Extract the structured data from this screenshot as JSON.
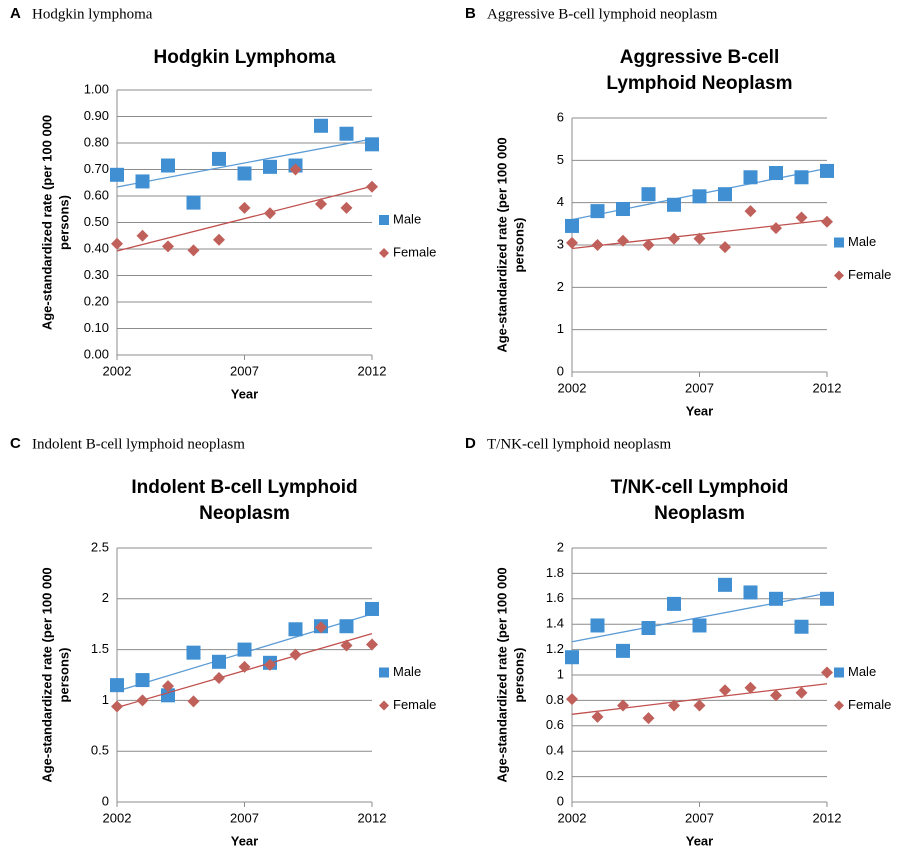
{
  "chart_data": [
    {
      "type": "scatter",
      "panel": "A",
      "caption": "Hodgkin lymphoma",
      "title": [
        "Hodgkin Lymphoma"
      ],
      "ylabel": [
        "Age-standardized rate (per 100 000",
        "persons)"
      ],
      "xlabel": "Year",
      "x": [
        2002,
        2003,
        2004,
        2005,
        2006,
        2007,
        2008,
        2009,
        2010,
        2011,
        2012
      ],
      "series": [
        {
          "name": "Male",
          "color": "#3f8fd2",
          "trend_color": "#5b9bd5",
          "marker": "square",
          "values": [
            0.68,
            0.655,
            0.715,
            0.575,
            0.74,
            0.685,
            0.71,
            0.715,
            0.865,
            0.835,
            0.795
          ]
        },
        {
          "name": "Female",
          "color": "#c0605a",
          "trend_color": "#c0504d",
          "marker": "diamond",
          "values": [
            0.42,
            0.45,
            0.41,
            0.395,
            0.435,
            0.555,
            0.535,
            0.7,
            0.57,
            0.555,
            0.635
          ]
        }
      ],
      "trendline": "linear",
      "xlim": [
        2002,
        2012
      ],
      "xticks": [
        2002,
        2007,
        2012
      ],
      "ylim": [
        0,
        1
      ],
      "yticks": [
        {
          "value": 0,
          "label": "0.00"
        },
        {
          "value": 0.1,
          "label": "0.10"
        },
        {
          "value": 0.2,
          "label": "0.20"
        },
        {
          "value": 0.3,
          "label": "0.30"
        },
        {
          "value": 0.4,
          "label": "0.40"
        },
        {
          "value": 0.5,
          "label": "0.50"
        },
        {
          "value": 0.6,
          "label": "0.60"
        },
        {
          "value": 0.7,
          "label": "0.70"
        },
        {
          "value": 0.8,
          "label": "0.80"
        },
        {
          "value": 0.9,
          "label": "0.90"
        },
        {
          "value": 1,
          "label": "1.00"
        }
      ],
      "grid": true,
      "legend": "right"
    },
    {
      "type": "scatter",
      "panel": "B",
      "caption": "Aggressive B-cell lymphoid neoplasm",
      "title": [
        "Aggressive B-cell",
        "Lymphoid Neoplasm"
      ],
      "ylabel": [
        "Age-standardized rate (per 100 000",
        "persons)"
      ],
      "xlabel": "Year",
      "x": [
        2002,
        2003,
        2004,
        2005,
        2006,
        2007,
        2008,
        2009,
        2010,
        2011,
        2012
      ],
      "series": [
        {
          "name": "Male",
          "color": "#3f8fd2",
          "trend_color": "#5b9bd5",
          "marker": "square",
          "values": [
            3.45,
            3.8,
            3.85,
            4.2,
            3.95,
            4.15,
            4.2,
            4.6,
            4.7,
            4.6,
            4.75
          ]
        },
        {
          "name": "Female",
          "color": "#c0605a",
          "trend_color": "#c0504d",
          "marker": "diamond",
          "values": [
            3.05,
            3.0,
            3.1,
            3.0,
            3.15,
            3.15,
            2.95,
            3.8,
            3.4,
            3.65,
            3.55
          ]
        }
      ],
      "trendline": "linear",
      "xlim": [
        2002,
        2012
      ],
      "xticks": [
        2002,
        2007,
        2012
      ],
      "ylim": [
        0,
        6
      ],
      "yticks": [
        0,
        1,
        2,
        3,
        4,
        5,
        6
      ],
      "grid": true,
      "legend": "right"
    },
    {
      "type": "scatter",
      "panel": "C",
      "caption": "Indolent B-cell lymphoid neoplasm",
      "title": [
        "Indolent B-cell Lymphoid",
        "Neoplasm"
      ],
      "ylabel": [
        "Age-standardized rate (per 100 000",
        "persons)"
      ],
      "xlabel": "Year",
      "x": [
        2002,
        2003,
        2004,
        2005,
        2006,
        2007,
        2008,
        2009,
        2010,
        2011,
        2012
      ],
      "series": [
        {
          "name": "Male",
          "color": "#3f8fd2",
          "trend_color": "#5b9bd5",
          "marker": "square",
          "values": [
            1.15,
            1.2,
            1.05,
            1.47,
            1.38,
            1.5,
            1.37,
            1.7,
            1.73,
            1.73,
            1.9
          ]
        },
        {
          "name": "Female",
          "color": "#c0605a",
          "trend_color": "#c0504d",
          "marker": "diamond",
          "values": [
            0.94,
            1.0,
            1.14,
            0.99,
            1.22,
            1.33,
            1.35,
            1.45,
            1.72,
            1.54,
            1.55
          ]
        }
      ],
      "trendline": "linear",
      "xlim": [
        2002,
        2012
      ],
      "xticks": [
        2002,
        2007,
        2012
      ],
      "ylim": [
        0,
        2.5
      ],
      "yticks": [
        0,
        0.5,
        1,
        1.5,
        2,
        2.5
      ],
      "grid": true,
      "legend": "right"
    },
    {
      "type": "scatter",
      "panel": "D",
      "caption": "T/NK-cell lymphoid neoplasm",
      "title": [
        "T/NK-cell Lymphoid",
        "Neoplasm"
      ],
      "ylabel": [
        "Age-standardized rate (per 100 000",
        "persons)"
      ],
      "xlabel": "Year",
      "x": [
        2002,
        2003,
        2004,
        2005,
        2006,
        2007,
        2008,
        2009,
        2010,
        2011,
        2012
      ],
      "series": [
        {
          "name": "Male",
          "color": "#3f8fd2",
          "trend_color": "#5b9bd5",
          "marker": "square",
          "values": [
            1.14,
            1.39,
            1.19,
            1.37,
            1.56,
            1.39,
            1.71,
            1.65,
            1.6,
            1.38,
            1.6
          ]
        },
        {
          "name": "Female",
          "color": "#c0605a",
          "trend_color": "#c0504d",
          "marker": "diamond",
          "values": [
            0.81,
            0.67,
            0.76,
            0.66,
            0.76,
            0.76,
            0.88,
            0.9,
            0.84,
            0.86,
            1.02
          ]
        }
      ],
      "trendline": "linear",
      "xlim": [
        2002,
        2012
      ],
      "xticks": [
        2002,
        2007,
        2012
      ],
      "ylim": [
        0,
        2
      ],
      "yticks": [
        0,
        0.2,
        0.4,
        0.6,
        0.8,
        1,
        1.2,
        1.4,
        1.6,
        1.8,
        2
      ],
      "grid": true,
      "legend": "right"
    }
  ]
}
